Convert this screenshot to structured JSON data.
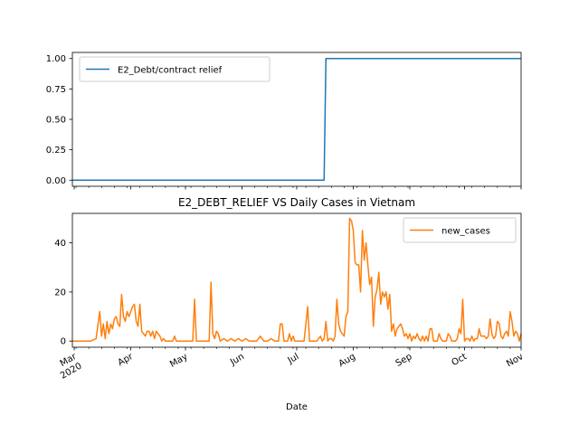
{
  "chart_data": [
    {
      "type": "line",
      "title": "",
      "xlabel": "",
      "ylabel": "",
      "ylim": [
        -0.05,
        1.05
      ],
      "y_ticks": [
        0.0,
        0.25,
        0.5,
        0.75,
        1.0
      ],
      "y_tick_labels": [
        "0.00",
        "0.25",
        "0.50",
        "0.75",
        "1.00"
      ],
      "legend_position": "upper-left",
      "series": [
        {
          "name": "E2_Debt/contract relief",
          "color": "#1f77b4",
          "points": [
            [
              "2020-02-29",
              0
            ],
            [
              "2020-07-16",
              0
            ],
            [
              "2020-07-17",
              1
            ],
            [
              "2020-11-01",
              1
            ]
          ]
        }
      ]
    },
    {
      "type": "line",
      "title": "E2_DEBT_RELIEF VS Daily Cases in Vietnam",
      "xlabel": "Date",
      "ylabel": "",
      "ylim": [
        -2.5,
        52
      ],
      "y_ticks": [
        0,
        20,
        40
      ],
      "y_tick_labels": [
        "0",
        "20",
        "40"
      ],
      "legend_position": "upper-right",
      "x_range": [
        "2020-02-29",
        "2020-11-01"
      ],
      "x_ticks": [
        "2020-03-01",
        "2020-04-01",
        "2020-05-01",
        "2020-06-01",
        "2020-07-01",
        "2020-08-01",
        "2020-09-01",
        "2020-10-01",
        "2020-11-01"
      ],
      "x_tick_labels": [
        "Mar\n2020",
        "Apr",
        "May",
        "Jun",
        "Jul",
        "Aug",
        "Sep",
        "Oct",
        "Nov"
      ],
      "series": [
        {
          "name": "new_cases",
          "color": "#ff7f0e",
          "points": [
            [
              "2020-02-29",
              0
            ],
            [
              "2020-03-05",
              0
            ],
            [
              "2020-03-10",
              0
            ],
            [
              "2020-03-13",
              1
            ],
            [
              "2020-03-15",
              12
            ],
            [
              "2020-03-16",
              2
            ],
            [
              "2020-03-17",
              7
            ],
            [
              "2020-03-18",
              1
            ],
            [
              "2020-03-19",
              8
            ],
            [
              "2020-03-20",
              3
            ],
            [
              "2020-03-21",
              7
            ],
            [
              "2020-03-22",
              5
            ],
            [
              "2020-03-23",
              9
            ],
            [
              "2020-03-24",
              10
            ],
            [
              "2020-03-25",
              7
            ],
            [
              "2020-03-26",
              6
            ],
            [
              "2020-03-27",
              19
            ],
            [
              "2020-03-28",
              10
            ],
            [
              "2020-03-29",
              8
            ],
            [
              "2020-03-30",
              12
            ],
            [
              "2020-03-31",
              10
            ],
            [
              "2020-04-01",
              12
            ],
            [
              "2020-04-02",
              14
            ],
            [
              "2020-04-03",
              15
            ],
            [
              "2020-04-04",
              8
            ],
            [
              "2020-04-05",
              6
            ],
            [
              "2020-04-06",
              15
            ],
            [
              "2020-04-07",
              4
            ],
            [
              "2020-04-08",
              3
            ],
            [
              "2020-04-09",
              2
            ],
            [
              "2020-04-10",
              4
            ],
            [
              "2020-04-11",
              4
            ],
            [
              "2020-04-12",
              2
            ],
            [
              "2020-04-13",
              4
            ],
            [
              "2020-04-14",
              1
            ],
            [
              "2020-04-15",
              4
            ],
            [
              "2020-04-16",
              3
            ],
            [
              "2020-04-17",
              2
            ],
            [
              "2020-04-18",
              0
            ],
            [
              "2020-04-19",
              1
            ],
            [
              "2020-04-20",
              0
            ],
            [
              "2020-04-22",
              0
            ],
            [
              "2020-04-24",
              0
            ],
            [
              "2020-04-25",
              2
            ],
            [
              "2020-04-26",
              0
            ],
            [
              "2020-04-28",
              0
            ],
            [
              "2020-04-30",
              0
            ],
            [
              "2020-05-02",
              0
            ],
            [
              "2020-05-04",
              0
            ],
            [
              "2020-05-05",
              0
            ],
            [
              "2020-05-06",
              17
            ],
            [
              "2020-05-07",
              0
            ],
            [
              "2020-05-08",
              0
            ],
            [
              "2020-05-10",
              0
            ],
            [
              "2020-05-12",
              0
            ],
            [
              "2020-05-14",
              0
            ],
            [
              "2020-05-15",
              24
            ],
            [
              "2020-05-16",
              3
            ],
            [
              "2020-05-17",
              1
            ],
            [
              "2020-05-18",
              4
            ],
            [
              "2020-05-19",
              3
            ],
            [
              "2020-05-20",
              0
            ],
            [
              "2020-05-22",
              1
            ],
            [
              "2020-05-24",
              0
            ],
            [
              "2020-05-26",
              1
            ],
            [
              "2020-05-28",
              0
            ],
            [
              "2020-05-30",
              1
            ],
            [
              "2020-06-01",
              0
            ],
            [
              "2020-06-03",
              1
            ],
            [
              "2020-06-05",
              0
            ],
            [
              "2020-06-09",
              0
            ],
            [
              "2020-06-11",
              2
            ],
            [
              "2020-06-13",
              0
            ],
            [
              "2020-06-15",
              0
            ],
            [
              "2020-06-17",
              1
            ],
            [
              "2020-06-19",
              0
            ],
            [
              "2020-06-21",
              0
            ],
            [
              "2020-06-22",
              7
            ],
            [
              "2020-06-23",
              7
            ],
            [
              "2020-06-24",
              0
            ],
            [
              "2020-06-26",
              0
            ],
            [
              "2020-06-27",
              3
            ],
            [
              "2020-06-28",
              0
            ],
            [
              "2020-06-29",
              2
            ],
            [
              "2020-06-30",
              0
            ],
            [
              "2020-07-03",
              0
            ],
            [
              "2020-07-05",
              0
            ],
            [
              "2020-07-07",
              14
            ],
            [
              "2020-07-08",
              0
            ],
            [
              "2020-07-10",
              0
            ],
            [
              "2020-07-12",
              0
            ],
            [
              "2020-07-14",
              2
            ],
            [
              "2020-07-15",
              0
            ],
            [
              "2020-07-16",
              1
            ],
            [
              "2020-07-17",
              8
            ],
            [
              "2020-07-18",
              0
            ],
            [
              "2020-07-19",
              1
            ],
            [
              "2020-07-20",
              1
            ],
            [
              "2020-07-21",
              0
            ],
            [
              "2020-07-22",
              2
            ],
            [
              "2020-07-23",
              17
            ],
            [
              "2020-07-24",
              7
            ],
            [
              "2020-07-25",
              4
            ],
            [
              "2020-07-26",
              3
            ],
            [
              "2020-07-27",
              2
            ],
            [
              "2020-07-28",
              10
            ],
            [
              "2020-07-29",
              12
            ],
            [
              "2020-07-30",
              50
            ],
            [
              "2020-07-31",
              49
            ],
            [
              "2020-08-01",
              45
            ],
            [
              "2020-08-02",
              32
            ],
            [
              "2020-08-03",
              31
            ],
            [
              "2020-08-04",
              31
            ],
            [
              "2020-08-05",
              20
            ],
            [
              "2020-08-06",
              45
            ],
            [
              "2020-08-07",
              33
            ],
            [
              "2020-08-08",
              40
            ],
            [
              "2020-08-09",
              31
            ],
            [
              "2020-08-10",
              23
            ],
            [
              "2020-08-11",
              26
            ],
            [
              "2020-08-12",
              6
            ],
            [
              "2020-08-13",
              18
            ],
            [
              "2020-08-14",
              21
            ],
            [
              "2020-08-15",
              28
            ],
            [
              "2020-08-16",
              15
            ],
            [
              "2020-08-17",
              20
            ],
            [
              "2020-08-18",
              18
            ],
            [
              "2020-08-19",
              20
            ],
            [
              "2020-08-20",
              13
            ],
            [
              "2020-08-21",
              19
            ],
            [
              "2020-08-22",
              4
            ],
            [
              "2020-08-23",
              7
            ],
            [
              "2020-08-24",
              2
            ],
            [
              "2020-08-25",
              5
            ],
            [
              "2020-08-26",
              6
            ],
            [
              "2020-08-27",
              7
            ],
            [
              "2020-08-28",
              5
            ],
            [
              "2020-08-29",
              2
            ],
            [
              "2020-08-30",
              3
            ],
            [
              "2020-08-31",
              1
            ],
            [
              "2020-09-01",
              3
            ],
            [
              "2020-09-02",
              0
            ],
            [
              "2020-09-03",
              2
            ],
            [
              "2020-09-04",
              1
            ],
            [
              "2020-09-05",
              3
            ],
            [
              "2020-09-06",
              1
            ],
            [
              "2020-09-07",
              0
            ],
            [
              "2020-09-08",
              2
            ],
            [
              "2020-09-09",
              0
            ],
            [
              "2020-09-10",
              2
            ],
            [
              "2020-09-11",
              0
            ],
            [
              "2020-09-12",
              5
            ],
            [
              "2020-09-13",
              5
            ],
            [
              "2020-09-14",
              0
            ],
            [
              "2020-09-16",
              0
            ],
            [
              "2020-09-17",
              3
            ],
            [
              "2020-09-18",
              1
            ],
            [
              "2020-09-19",
              0
            ],
            [
              "2020-09-21",
              0
            ],
            [
              "2020-09-22",
              3
            ],
            [
              "2020-09-23",
              2
            ],
            [
              "2020-09-24",
              0
            ],
            [
              "2020-09-26",
              0
            ],
            [
              "2020-09-27",
              1
            ],
            [
              "2020-09-28",
              5
            ],
            [
              "2020-09-29",
              3
            ],
            [
              "2020-09-30",
              17
            ],
            [
              "2020-10-01",
              0
            ],
            [
              "2020-10-02",
              1
            ],
            [
              "2020-10-03",
              1
            ],
            [
              "2020-10-04",
              0
            ],
            [
              "2020-10-05",
              2
            ],
            [
              "2020-10-06",
              0
            ],
            [
              "2020-10-07",
              1
            ],
            [
              "2020-10-08",
              1
            ],
            [
              "2020-10-09",
              5
            ],
            [
              "2020-10-10",
              2
            ],
            [
              "2020-10-11",
              2
            ],
            [
              "2020-10-12",
              2
            ],
            [
              "2020-10-13",
              1
            ],
            [
              "2020-10-14",
              2
            ],
            [
              "2020-10-15",
              9
            ],
            [
              "2020-10-16",
              3
            ],
            [
              "2020-10-17",
              1
            ],
            [
              "2020-10-18",
              2
            ],
            [
              "2020-10-19",
              8
            ],
            [
              "2020-10-20",
              7
            ],
            [
              "2020-10-21",
              2
            ],
            [
              "2020-10-22",
              1
            ],
            [
              "2020-10-23",
              3
            ],
            [
              "2020-10-24",
              4
            ],
            [
              "2020-10-25",
              2
            ],
            [
              "2020-10-26",
              12
            ],
            [
              "2020-10-27",
              8
            ],
            [
              "2020-10-28",
              2
            ],
            [
              "2020-10-29",
              4
            ],
            [
              "2020-10-30",
              3
            ],
            [
              "2020-10-31",
              0
            ],
            [
              "2020-11-01",
              3
            ]
          ]
        }
      ]
    }
  ]
}
